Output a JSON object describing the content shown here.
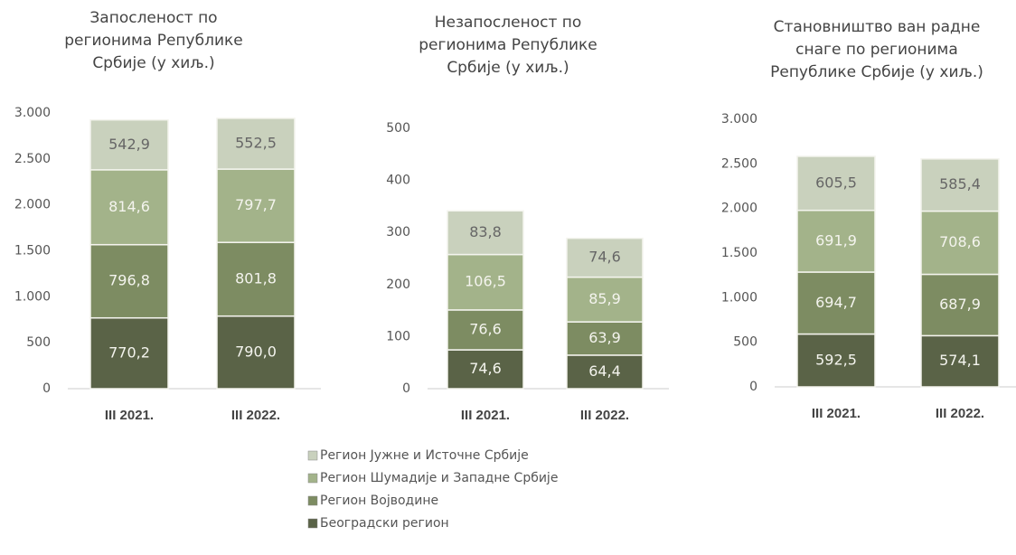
{
  "legend": [
    {
      "name": "Регион Јужне и Источне Србије",
      "color": "#c9d1bd"
    },
    {
      "name": "Регион Шумадије и Западне Србије",
      "color": "#a3b38a"
    },
    {
      "name": "Регион Војводине",
      "color": "#7d8c62"
    },
    {
      "name": "Београдски регион",
      "color": "#5a6347"
    }
  ],
  "chart_data": [
    {
      "type": "bar",
      "stacked": true,
      "title": [
        "Запосленост по",
        "регионима Републике",
        "Србије (у хиљ.)"
      ],
      "categories": [
        "III 2021.",
        "III 2022."
      ],
      "series": [
        {
          "values": [
            542.9,
            552.5
          ],
          "value_labels": [
            "542,9",
            "552,5"
          ]
        },
        {
          "values": [
            814.6,
            797.7
          ],
          "value_labels": [
            "814,6",
            "797,7"
          ]
        },
        {
          "values": [
            796.8,
            801.8
          ],
          "value_labels": [
            "796,8",
            "801,8"
          ]
        },
        {
          "values": [
            770.2,
            790.0
          ],
          "value_labels": [
            "770,2",
            "790,0"
          ]
        }
      ],
      "ylim": [
        0,
        3000
      ],
      "yticks": [
        0,
        500,
        {
          "value": 1000,
          "label": "1.000"
        },
        {
          "value": 1500,
          "label": "1.500"
        },
        {
          "value": 2000,
          "label": "2.000"
        },
        {
          "value": 2500,
          "label": "2.500"
        },
        {
          "value": 3000,
          "label": "3.000"
        }
      ]
    },
    {
      "type": "bar",
      "stacked": true,
      "title": [
        "Незапосленост по",
        "регионима Републике",
        "Србије (у хиљ.)"
      ],
      "categories": [
        "III 2021.",
        "III 2022."
      ],
      "series": [
        {
          "values": [
            83.8,
            74.6
          ],
          "value_labels": [
            "83,8",
            "74,6"
          ]
        },
        {
          "values": [
            106.5,
            85.9
          ],
          "value_labels": [
            "106,5",
            "85,9"
          ]
        },
        {
          "values": [
            76.6,
            63.9
          ],
          "value_labels": [
            "76,6",
            "63,9"
          ]
        },
        {
          "values": [
            74.6,
            64.4
          ],
          "value_labels": [
            "74,6",
            "64,4"
          ]
        }
      ],
      "ylim": [
        0,
        500
      ],
      "yticks": [
        0,
        100,
        200,
        300,
        400,
        500
      ]
    },
    {
      "type": "bar",
      "stacked": true,
      "title": [
        "Становништво ван радне",
        "снаге по регионима",
        "Републике Србије (у хиљ.)"
      ],
      "categories": [
        "III 2021.",
        "III 2022."
      ],
      "series": [
        {
          "values": [
            605.5,
            585.4
          ],
          "value_labels": [
            "605,5",
            "585,4"
          ]
        },
        {
          "values": [
            691.9,
            708.6
          ],
          "value_labels": [
            "691,9",
            "708,6"
          ]
        },
        {
          "values": [
            694.7,
            687.9
          ],
          "value_labels": [
            "694,7",
            "687,9"
          ]
        },
        {
          "values": [
            592.5,
            574.1
          ],
          "value_labels": [
            "592,5",
            "574,1"
          ]
        }
      ],
      "ylim": [
        0,
        3000
      ],
      "yticks": [
        0,
        500,
        {
          "value": 1000,
          "label": "1.000"
        },
        {
          "value": 1500,
          "label": "1.500"
        },
        {
          "value": 2000,
          "label": "2.000"
        },
        {
          "value": 2500,
          "label": "2.500"
        },
        {
          "value": 3000,
          "label": "3.000"
        }
      ]
    }
  ]
}
